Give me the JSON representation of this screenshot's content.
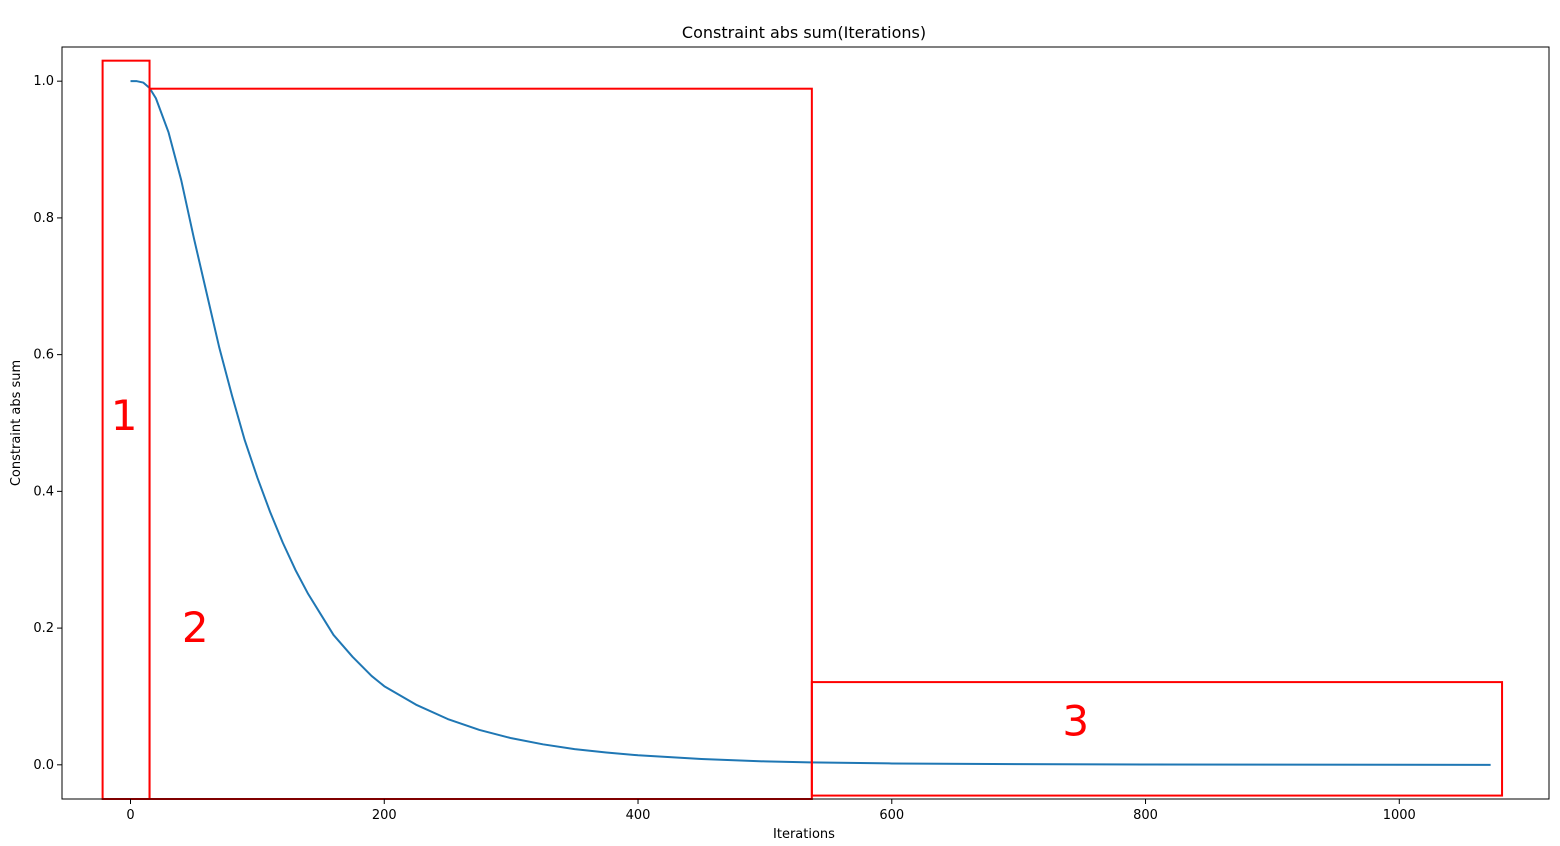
{
  "chart_data": {
    "type": "line",
    "title": "Constraint abs sum(Iterations)",
    "xlabel": "Iterations",
    "ylabel": "Constraint abs sum",
    "xlim": [
      -54,
      1118
    ],
    "ylim": [
      -0.05,
      1.05
    ],
    "xticks": [
      0,
      200,
      400,
      600,
      800,
      1000
    ],
    "yticks": [
      0.0,
      0.2,
      0.4,
      0.6,
      0.8,
      1.0
    ],
    "xtick_labels": [
      "0",
      "200",
      "400",
      "600",
      "800",
      "1000"
    ],
    "ytick_labels": [
      "0.0",
      "0.2",
      "0.4",
      "0.6",
      "0.8",
      "1.0"
    ],
    "grid": false,
    "series": [
      {
        "color": "#1f77b4",
        "x": [
          0,
          5,
          10,
          15,
          20,
          30,
          40,
          50,
          60,
          70,
          80,
          90,
          100,
          110,
          120,
          130,
          140,
          150,
          160,
          175,
          190,
          200,
          225,
          250,
          275,
          300,
          325,
          350,
          375,
          400,
          450,
          500,
          535,
          600,
          700,
          800,
          900,
          1000,
          1072
        ],
        "y": [
          1.0,
          1.0,
          0.998,
          0.99,
          0.975,
          0.925,
          0.855,
          0.77,
          0.69,
          0.61,
          0.54,
          0.475,
          0.42,
          0.37,
          0.325,
          0.285,
          0.25,
          0.22,
          0.19,
          0.158,
          0.13,
          0.115,
          0.088,
          0.067,
          0.051,
          0.039,
          0.03,
          0.023,
          0.018,
          0.014,
          0.0085,
          0.005,
          0.0035,
          0.002,
          0.001,
          0.0005,
          0.0002,
          0.0001,
          0.0
        ]
      }
    ],
    "annotations": [
      {
        "label": "1",
        "color": "#ff0000",
        "x0": -22,
        "x1": 15,
        "y0": -0.05,
        "y1": 1.03,
        "label_x": -5,
        "label_y": 0.49
      },
      {
        "label": "2",
        "color": "#ff0000",
        "x0": 15,
        "x1": 537,
        "y0": -0.05,
        "y1": 0.989,
        "label_x": 51,
        "label_y": 0.18
      },
      {
        "label": "3",
        "color": "#ff0000",
        "x0": 537,
        "x1": 1081,
        "y0": -0.045,
        "y1": 0.121,
        "label_x": 745,
        "label_y": 0.043
      }
    ]
  }
}
